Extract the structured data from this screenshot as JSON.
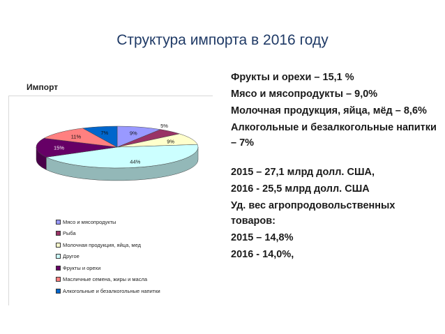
{
  "slide": {
    "title": "Структура импорта в 2016 году"
  },
  "chart_data": {
    "type": "pie",
    "title": "Импорт",
    "style": "3d",
    "slices": [
      {
        "label": "Мясо и мясопродукты",
        "value": 9,
        "value_label": "9%",
        "color": "#9999ff"
      },
      {
        "label": "Рыба",
        "value": 5,
        "value_label": "5%",
        "color": "#993366"
      },
      {
        "label": "Молочная продукция, яйца, мед",
        "value": 9,
        "value_label": "9%",
        "color": "#ffffcc"
      },
      {
        "label": "Другое",
        "value": 44,
        "value_label": "44%",
        "color": "#ccffff"
      },
      {
        "label": "Фрукты и орехи",
        "value": 15,
        "value_label": "15%",
        "color": "#660066"
      },
      {
        "label": "Масличные семена, жиры и масла",
        "value": 11,
        "value_label": "11%",
        "color": "#ff8080"
      },
      {
        "label": "Алкогольные и безалкогольные напитки",
        "value": 7,
        "value_label": "7%",
        "color": "#0066cc"
      }
    ],
    "legend_position": "bottom"
  },
  "facts": [
    "Фрукты и орехи – 15,1 %",
    "Мясо и мясопродукты – 9,0%",
    "Молочная продукция, яйца, мёд – 8,6%",
    "Алкогольные и безалкогольные напитки – 7%",
    "",
    "2015 – 27,1 млрд долл. США,",
    "2016 - 25,5 млрд долл. США",
    "Уд. вес агропродовольственных товаров:",
    "2015 – 14,8%",
    "2016 - 14,0%,"
  ]
}
